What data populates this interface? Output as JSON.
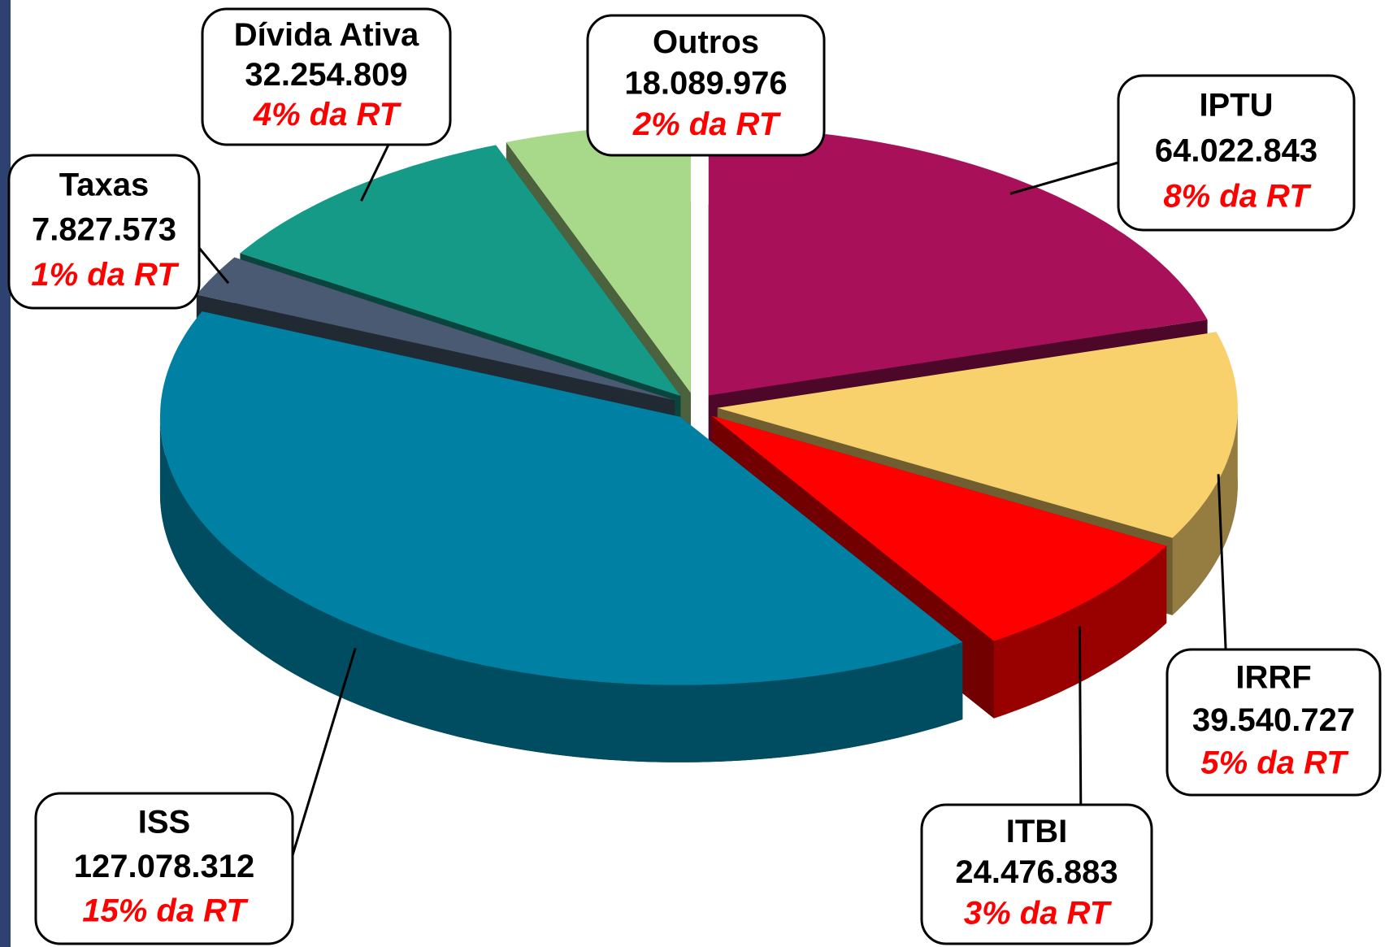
{
  "chart_data": {
    "type": "pie",
    "categories": [
      "IPTU",
      "IRRF",
      "ITBI",
      "ISS",
      "Taxas",
      "Dívida Ativa",
      "Outros"
    ],
    "values": [
      64022843,
      39540727,
      24476883,
      127078312,
      7827573,
      32254809,
      18089976
    ],
    "value_labels": [
      "64.022.843",
      "39.540.727",
      "24.476.883",
      "127.078.312",
      "7.827.573",
      "32.254.809",
      "18.089.976"
    ],
    "shares": [
      8,
      5,
      3,
      15,
      1,
      4,
      2
    ],
    "share_labels": [
      "8% da RT",
      "5% da RT",
      "3% da RT",
      "15% da RT",
      "1% da RT",
      "4% da RT",
      "2% da RT"
    ],
    "colors": [
      "#a8105a",
      "#f8d06c",
      "#ff0000",
      "#0080a2",
      "#4a5a72",
      "#169a88",
      "#a8d88a"
    ]
  }
}
